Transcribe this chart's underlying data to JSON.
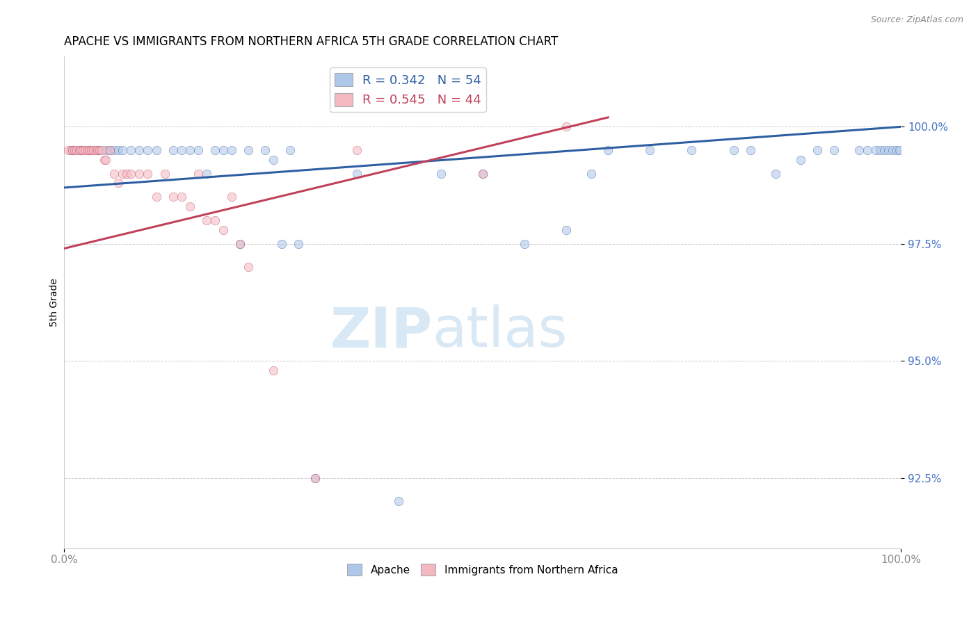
{
  "title": "APACHE VS IMMIGRANTS FROM NORTHERN AFRICA 5TH GRADE CORRELATION CHART",
  "source": "Source: ZipAtlas.com",
  "ylabel": "5th Grade",
  "xlim": [
    0.0,
    100.0
  ],
  "ylim": [
    91.0,
    101.5
  ],
  "yticks": [
    92.5,
    95.0,
    97.5,
    100.0
  ],
  "ytick_labels": [
    "92.5%",
    "95.0%",
    "97.5%",
    "100.0%"
  ],
  "legend_items": [
    {
      "label": "R = 0.342   N = 54",
      "color": "#aec6e8"
    },
    {
      "label": "R = 0.545   N = 44",
      "color": "#f4b8c1"
    }
  ],
  "background_color": "#ffffff",
  "blue_scatter_x": [
    1.0,
    2.0,
    3.0,
    4.0,
    5.0,
    5.5,
    6.0,
    6.5,
    7.0,
    8.0,
    9.0,
    10.0,
    11.0,
    13.0,
    14.0,
    16.0,
    18.0,
    20.0,
    25.0,
    27.0,
    30.0,
    35.0,
    50.0,
    55.0,
    60.0,
    65.0,
    70.0,
    75.0,
    80.0,
    85.0,
    88.0,
    90.0,
    92.0,
    95.0,
    96.0,
    97.0,
    97.5,
    98.0,
    98.5,
    99.0,
    99.5,
    99.8,
    40.0,
    45.0,
    63.0,
    82.0,
    17.0,
    21.0,
    22.0,
    15.0,
    24.0,
    26.0,
    28.0,
    19.0
  ],
  "blue_scatter_y": [
    99.5,
    99.5,
    99.5,
    99.5,
    99.5,
    99.5,
    99.5,
    99.5,
    99.5,
    99.5,
    99.5,
    99.5,
    99.5,
    99.5,
    99.5,
    99.5,
    99.5,
    99.5,
    99.3,
    99.5,
    92.5,
    99.0,
    99.0,
    97.5,
    97.8,
    99.5,
    99.5,
    99.5,
    99.5,
    99.0,
    99.3,
    99.5,
    99.5,
    99.5,
    99.5,
    99.5,
    99.5,
    99.5,
    99.5,
    99.5,
    99.5,
    99.5,
    92.0,
    99.0,
    99.0,
    99.5,
    99.0,
    97.5,
    99.5,
    99.5,
    99.5,
    97.5,
    97.5,
    99.5
  ],
  "pink_scatter_x": [
    0.5,
    0.8,
    1.0,
    1.2,
    1.5,
    1.8,
    2.0,
    2.2,
    2.5,
    2.8,
    3.0,
    3.2,
    3.5,
    3.8,
    4.0,
    4.2,
    4.5,
    4.8,
    5.0,
    5.5,
    6.0,
    6.5,
    7.0,
    7.5,
    8.0,
    9.0,
    10.0,
    11.0,
    12.0,
    13.0,
    14.0,
    15.0,
    16.0,
    17.0,
    18.0,
    19.0,
    20.0,
    21.0,
    22.0,
    25.0,
    30.0,
    35.0,
    50.0,
    60.0
  ],
  "pink_scatter_y": [
    99.5,
    99.5,
    99.5,
    99.5,
    99.5,
    99.5,
    99.5,
    99.5,
    99.5,
    99.5,
    99.5,
    99.5,
    99.5,
    99.5,
    99.5,
    99.5,
    99.5,
    99.3,
    99.3,
    99.5,
    99.0,
    98.8,
    99.0,
    99.0,
    99.0,
    99.0,
    99.0,
    98.5,
    99.0,
    98.5,
    98.5,
    98.3,
    99.0,
    98.0,
    98.0,
    97.8,
    98.5,
    97.5,
    97.0,
    94.8,
    92.5,
    99.5,
    99.0,
    100.0
  ],
  "blue_line_x": [
    0.0,
    100.0
  ],
  "blue_line_y": [
    98.7,
    100.0
  ],
  "pink_line_x": [
    0.0,
    65.0
  ],
  "pink_line_y": [
    97.4,
    100.2
  ],
  "blue_color": "#aec6e8",
  "pink_color": "#f4b8c1",
  "blue_line_color": "#2e5fa3",
  "pink_line_color": "#c0415a",
  "marker_size": 80,
  "marker_alpha": 0.55
}
